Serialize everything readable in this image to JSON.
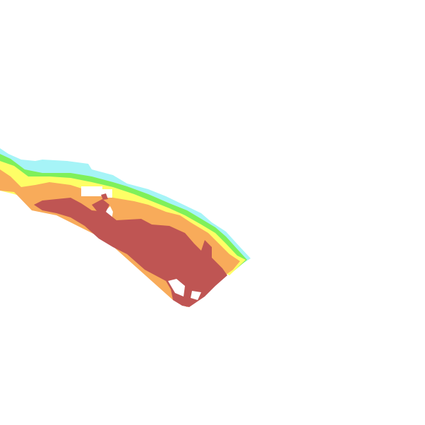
{
  "map": {
    "type": "raster-overlay",
    "layers": [
      {
        "name": "class-1",
        "color": "#a6f4f7"
      },
      {
        "name": "class-2",
        "color": "#7ff05a"
      },
      {
        "name": "class-3",
        "color": "#fefe66"
      },
      {
        "name": "class-4",
        "color": "#f8ab5a"
      },
      {
        "name": "class-5",
        "color": "#bf5553"
      }
    ],
    "background": "#ffffff"
  }
}
